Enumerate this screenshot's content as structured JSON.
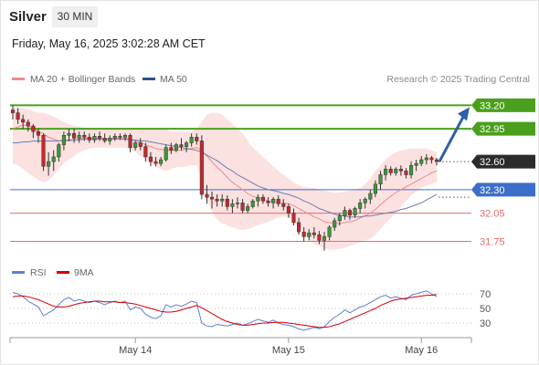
{
  "header": {
    "instrument": "Silver",
    "timeframe": "30 MIN",
    "datetime": "Friday, May 16, 2025 3:02:28 AM CET"
  },
  "legend": [
    {
      "label": "MA 20 + Bollinger Bands",
      "color": "#f08a8a"
    },
    {
      "label": "MA 50",
      "color": "#2f4f8f"
    }
  ],
  "credit": "Research © 2025 Trading Central",
  "rsi_legend": [
    {
      "label": "RSI",
      "color": "#5b7fd6"
    },
    {
      "label": "9MA",
      "color": "#d00000"
    }
  ],
  "colors": {
    "up": "#3a9a3a",
    "down": "#c62828",
    "resistance": "#4aa01c",
    "pivot": "#3c6fc9",
    "support": "#e46a6a",
    "last": "#2b2b2b",
    "arrow": "#2f5fa8",
    "band": "#fbdcdc"
  },
  "chart_data": [
    {
      "type": "candlestick",
      "x_tick_labels": [
        "May 14",
        "May 15",
        "May 16"
      ],
      "ylim": [
        31.55,
        33.35
      ],
      "candles_ohlc": [
        [
          33.15,
          33.2,
          33.05,
          33.12
        ],
        [
          33.12,
          33.17,
          33.0,
          33.05
        ],
        [
          33.05,
          33.1,
          32.95,
          33.02
        ],
        [
          33.02,
          33.05,
          32.92,
          32.98
        ],
        [
          32.98,
          33.0,
          32.85,
          32.92
        ],
        [
          32.92,
          32.95,
          32.8,
          32.88
        ],
        [
          32.88,
          32.9,
          32.5,
          32.55
        ],
        [
          32.55,
          32.7,
          32.45,
          32.6
        ],
        [
          32.6,
          32.72,
          32.5,
          32.65
        ],
        [
          32.65,
          32.8,
          32.6,
          32.78
        ],
        [
          32.78,
          32.92,
          32.72,
          32.88
        ],
        [
          32.88,
          32.95,
          32.82,
          32.9
        ],
        [
          32.9,
          32.95,
          32.8,
          32.85
        ],
        [
          32.85,
          32.92,
          32.8,
          32.88
        ],
        [
          32.88,
          32.92,
          32.82,
          32.86
        ],
        [
          32.86,
          32.9,
          32.8,
          32.83
        ],
        [
          32.83,
          32.9,
          32.8,
          32.87
        ],
        [
          32.87,
          32.92,
          32.82,
          32.85
        ],
        [
          32.85,
          32.9,
          32.8,
          32.82
        ],
        [
          32.82,
          32.88,
          32.78,
          32.85
        ],
        [
          32.85,
          32.9,
          32.82,
          32.87
        ],
        [
          32.87,
          32.9,
          32.83,
          32.86
        ],
        [
          32.86,
          32.9,
          32.82,
          32.88
        ],
        [
          32.88,
          32.9,
          32.7,
          32.75
        ],
        [
          32.75,
          32.82,
          32.72,
          32.8
        ],
        [
          32.8,
          32.85,
          32.72,
          32.76
        ],
        [
          32.76,
          32.8,
          32.6,
          32.65
        ],
        [
          32.65,
          32.7,
          32.55,
          32.6
        ],
        [
          32.6,
          32.65,
          32.55,
          32.58
        ],
        [
          32.58,
          32.65,
          32.55,
          32.62
        ],
        [
          32.62,
          32.78,
          32.6,
          32.75
        ],
        [
          32.75,
          32.8,
          32.68,
          32.72
        ],
        [
          32.72,
          32.8,
          32.7,
          32.78
        ],
        [
          32.78,
          32.85,
          32.72,
          32.76
        ],
        [
          32.76,
          32.82,
          32.7,
          32.8
        ],
        [
          32.8,
          32.9,
          32.76,
          32.86
        ],
        [
          32.86,
          32.9,
          32.78,
          32.82
        ],
        [
          32.82,
          32.88,
          32.2,
          32.25
        ],
        [
          32.25,
          32.35,
          32.15,
          32.22
        ],
        [
          32.22,
          32.28,
          32.1,
          32.2
        ],
        [
          32.2,
          32.25,
          32.12,
          32.18
        ],
        [
          32.18,
          32.25,
          32.12,
          32.2
        ],
        [
          32.2,
          32.24,
          32.08,
          32.12
        ],
        [
          32.12,
          32.2,
          32.05,
          32.15
        ],
        [
          32.15,
          32.22,
          32.1,
          32.16
        ],
        [
          32.16,
          32.2,
          32.05,
          32.08
        ],
        [
          32.08,
          32.15,
          32.05,
          32.12
        ],
        [
          32.12,
          32.2,
          32.1,
          32.18
        ],
        [
          32.18,
          32.25,
          32.12,
          32.22
        ],
        [
          32.22,
          32.25,
          32.15,
          32.18
        ],
        [
          32.18,
          32.22,
          32.12,
          32.16
        ],
        [
          32.16,
          32.22,
          32.1,
          32.2
        ],
        [
          32.2,
          32.24,
          32.12,
          32.15
        ],
        [
          32.15,
          32.2,
          32.08,
          32.12
        ],
        [
          32.12,
          32.15,
          32.0,
          32.05
        ],
        [
          32.05,
          32.1,
          31.92,
          31.95
        ],
        [
          31.95,
          32.0,
          31.82,
          31.85
        ],
        [
          31.85,
          31.9,
          31.75,
          31.8
        ],
        [
          31.8,
          31.88,
          31.76,
          31.84
        ],
        [
          31.84,
          31.9,
          31.78,
          31.82
        ],
        [
          31.82,
          31.86,
          31.72,
          31.76
        ],
        [
          31.76,
          31.85,
          31.65,
          31.8
        ],
        [
          31.8,
          31.92,
          31.76,
          31.9
        ],
        [
          31.9,
          32.0,
          31.86,
          31.97
        ],
        [
          31.97,
          32.05,
          31.92,
          32.02
        ],
        [
          32.02,
          32.12,
          31.98,
          32.08
        ],
        [
          32.08,
          32.1,
          31.98,
          32.03
        ],
        [
          32.03,
          32.12,
          32.0,
          32.1
        ],
        [
          32.1,
          32.2,
          32.05,
          32.16
        ],
        [
          32.16,
          32.22,
          32.1,
          32.2
        ],
        [
          32.2,
          32.3,
          32.15,
          32.26
        ],
        [
          32.26,
          32.4,
          32.22,
          32.36
        ],
        [
          32.36,
          32.5,
          32.3,
          32.46
        ],
        [
          32.46,
          32.56,
          32.4,
          32.52
        ],
        [
          32.52,
          32.55,
          32.45,
          32.48
        ],
        [
          32.48,
          32.54,
          32.45,
          32.52
        ],
        [
          32.52,
          32.56,
          32.45,
          32.5
        ],
        [
          32.5,
          32.53,
          32.42,
          32.46
        ],
        [
          32.46,
          32.6,
          32.42,
          32.56
        ],
        [
          32.56,
          32.62,
          32.5,
          32.58
        ],
        [
          32.58,
          32.66,
          32.55,
          32.62
        ],
        [
          32.62,
          32.68,
          32.57,
          32.64
        ],
        [
          32.64,
          32.66,
          32.58,
          32.62
        ],
        [
          32.62,
          32.64,
          32.56,
          32.6
        ]
      ],
      "ma20": [
        32.95,
        32.97,
        32.99,
        32.98,
        32.95,
        32.92,
        32.9,
        32.86,
        32.84,
        32.82,
        32.82,
        32.82,
        32.83,
        32.84,
        32.85,
        32.85,
        32.85,
        32.85,
        32.84,
        32.84,
        32.85,
        32.85,
        32.85,
        32.84,
        32.82,
        32.8,
        32.78,
        32.76,
        32.74,
        32.73,
        32.72,
        32.72,
        32.72,
        32.72,
        32.73,
        32.74,
        32.75,
        32.72,
        32.66,
        32.6,
        32.54,
        32.49,
        32.43,
        32.38,
        32.34,
        32.3,
        32.26,
        32.23,
        32.21,
        32.2,
        32.18,
        32.17,
        32.16,
        32.16,
        32.15,
        32.13,
        32.1,
        32.07,
        32.04,
        32.01,
        31.99,
        31.96,
        31.95,
        31.94,
        31.94,
        31.95,
        31.96,
        31.97,
        32.0,
        32.02,
        32.05,
        32.09,
        32.14,
        32.19,
        32.23,
        32.27,
        32.3,
        32.33,
        32.36,
        32.39,
        32.42,
        32.45,
        32.48,
        32.5
      ],
      "bb_upper": [
        33.18,
        33.18,
        33.17,
        33.16,
        33.14,
        33.12,
        33.12,
        33.1,
        33.08,
        33.05,
        33.02,
        33.0,
        32.98,
        32.97,
        32.96,
        32.96,
        32.96,
        32.96,
        32.96,
        32.96,
        32.96,
        32.95,
        32.95,
        32.95,
        32.95,
        32.95,
        32.96,
        32.96,
        32.96,
        32.96,
        32.94,
        32.92,
        32.92,
        32.92,
        32.92,
        32.92,
        32.95,
        33.02,
        33.1,
        33.12,
        33.12,
        33.1,
        33.05,
        33.0,
        32.95,
        32.9,
        32.82,
        32.75,
        32.7,
        32.65,
        32.6,
        32.55,
        32.5,
        32.46,
        32.42,
        32.38,
        32.35,
        32.33,
        32.32,
        32.32,
        32.3,
        32.29,
        32.28,
        32.27,
        32.27,
        32.28,
        32.29,
        32.3,
        32.32,
        32.36,
        32.42,
        32.5,
        32.56,
        32.62,
        32.67,
        32.7,
        32.72,
        32.73,
        32.74,
        32.74,
        32.74,
        32.74,
        32.72,
        32.7
      ],
      "bb_lower": [
        32.58,
        32.56,
        32.52,
        32.48,
        32.44,
        32.4,
        32.38,
        32.4,
        32.45,
        32.52,
        32.58,
        32.62,
        32.66,
        32.7,
        32.72,
        32.74,
        32.75,
        32.75,
        32.75,
        32.75,
        32.75,
        32.75,
        32.75,
        32.73,
        32.7,
        32.66,
        32.62,
        32.58,
        32.54,
        32.52,
        32.5,
        32.52,
        32.54,
        32.54,
        32.55,
        32.56,
        32.56,
        32.42,
        32.2,
        32.06,
        31.98,
        31.94,
        31.92,
        31.9,
        31.88,
        31.87,
        31.88,
        31.9,
        31.92,
        31.94,
        31.96,
        31.98,
        32.0,
        32.02,
        32.01,
        31.97,
        31.9,
        31.84,
        31.77,
        31.72,
        31.7,
        31.68,
        31.66,
        31.66,
        31.67,
        31.68,
        31.7,
        31.72,
        31.74,
        31.76,
        31.78,
        31.82,
        31.88,
        31.94,
        32.0,
        32.06,
        32.12,
        32.18,
        32.24,
        32.28,
        32.32,
        32.34,
        32.36,
        32.38
      ],
      "ma50": [
        32.8,
        32.8,
        32.81,
        32.81,
        32.82,
        32.82,
        32.82,
        32.82,
        32.82,
        32.82,
        32.83,
        32.83,
        32.83,
        32.83,
        32.84,
        32.84,
        32.84,
        32.84,
        32.84,
        32.84,
        32.84,
        32.84,
        32.84,
        32.83,
        32.83,
        32.82,
        32.82,
        32.81,
        32.8,
        32.79,
        32.78,
        32.77,
        32.76,
        32.75,
        32.74,
        32.73,
        32.72,
        32.7,
        32.67,
        32.64,
        32.61,
        32.57,
        32.53,
        32.5,
        32.46,
        32.43,
        32.4,
        32.37,
        32.34,
        32.32,
        32.3,
        32.29,
        32.28,
        32.26,
        32.25,
        32.23,
        32.21,
        32.18,
        32.16,
        32.13,
        32.1,
        32.08,
        32.06,
        32.04,
        32.03,
        32.02,
        32.01,
        32.01,
        32.01,
        32.02,
        32.02,
        32.03,
        32.04,
        32.05,
        32.06,
        32.07,
        32.09,
        32.1,
        32.12,
        32.14,
        32.16,
        32.19,
        32.22,
        32.25
      ],
      "levels": [
        {
          "label": "33.20",
          "value": 33.2,
          "kind": "resistance"
        },
        {
          "label": "32.95",
          "value": 32.95,
          "kind": "resistance"
        },
        {
          "label": "32.60",
          "value": 32.6,
          "kind": "last"
        },
        {
          "label": "32.30",
          "value": 32.3,
          "kind": "pivot"
        },
        {
          "label": "32.05",
          "value": 32.05,
          "kind": "support"
        },
        {
          "label": "31.75",
          "value": 31.75,
          "kind": "support"
        }
      ],
      "target_arrow": {
        "from": 32.6,
        "to": 33.18
      }
    },
    {
      "type": "line",
      "series": [
        {
          "name": "RSI"
        },
        {
          "name": "9MA"
        }
      ],
      "ylim": [
        15,
        85
      ],
      "y_tick_labels": [
        "70",
        "50",
        "30"
      ],
      "y_ticks": [
        70,
        50,
        30
      ],
      "rsi": [
        72,
        70,
        66,
        60,
        56,
        52,
        40,
        44,
        48,
        55,
        62,
        65,
        60,
        62,
        60,
        58,
        60,
        58,
        55,
        58,
        60,
        58,
        60,
        48,
        52,
        50,
        42,
        38,
        36,
        40,
        55,
        52,
        55,
        53,
        56,
        60,
        58,
        30,
        26,
        25,
        28,
        27,
        26,
        28,
        30,
        27,
        29,
        32,
        35,
        33,
        31,
        34,
        30,
        28,
        27,
        25,
        22,
        20,
        22,
        24,
        22,
        25,
        32,
        38,
        42,
        48,
        44,
        48,
        52,
        54,
        58,
        62,
        66,
        68,
        64,
        66,
        64,
        62,
        68,
        70,
        72,
        74,
        70,
        66
      ],
      "rsi_ma": [
        66,
        67,
        67,
        66,
        64,
        62,
        59,
        56,
        53,
        52,
        52,
        53,
        55,
        57,
        58,
        59,
        60,
        60,
        59,
        59,
        59,
        58,
        58,
        57,
        56,
        54,
        52,
        50,
        48,
        46,
        45,
        45,
        46,
        48,
        50,
        52,
        54,
        51,
        47,
        43,
        39,
        35,
        32,
        30,
        28,
        27,
        27,
        28,
        29,
        30,
        30,
        31,
        31,
        31,
        30,
        29,
        28,
        27,
        26,
        25,
        24,
        24,
        25,
        27,
        29,
        32,
        35,
        38,
        41,
        44,
        47,
        50,
        54,
        57,
        60,
        62,
        63,
        64,
        65,
        66,
        67,
        68,
        68,
        69
      ]
    }
  ]
}
